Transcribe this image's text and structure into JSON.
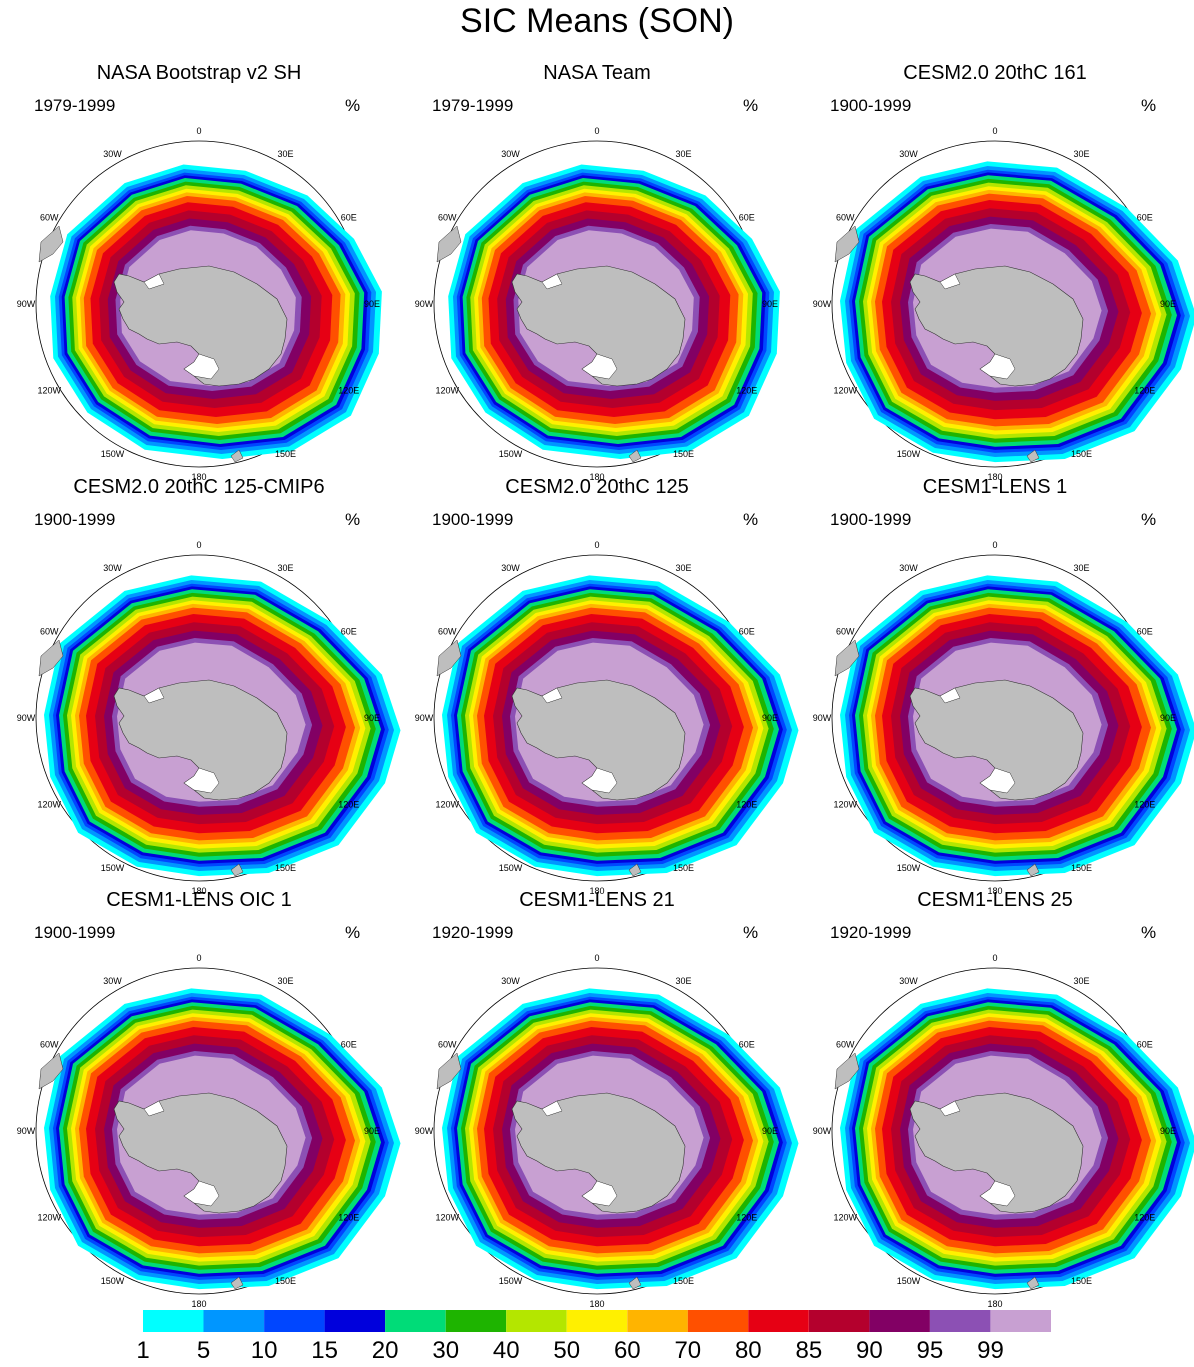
{
  "title": "SIC Means (SON)",
  "units": "%",
  "lon_labels": [
    "0",
    "30E",
    "60E",
    "90E",
    "120E",
    "150E",
    "180",
    "150W",
    "120W",
    "90W",
    "60W",
    "30W"
  ],
  "panels": [
    {
      "title": "NASA Bootstrap v2 SH",
      "period": "1979-1999"
    },
    {
      "title": "NASA Team",
      "period": "1979-1999"
    },
    {
      "title": "CESM2.0 20thC 161",
      "period": "1900-1999"
    },
    {
      "title": "CESM2.0 20thC 125-CMIP6",
      "period": "1900-1999"
    },
    {
      "title": "CESM2.0 20thC 125",
      "period": "1900-1999"
    },
    {
      "title": "CESM1-LENS 1",
      "period": "1900-1999"
    },
    {
      "title": "CESM1-LENS OIC 1",
      "period": "1900-1999"
    },
    {
      "title": "CESM1-LENS 21",
      "period": "1920-1999"
    },
    {
      "title": "CESM1-LENS 25",
      "period": "1920-1999"
    }
  ],
  "colorbar": {
    "labels": [
      "1",
      "5",
      "10",
      "15",
      "20",
      "30",
      "40",
      "50",
      "60",
      "70",
      "80",
      "85",
      "90",
      "95",
      "99"
    ],
    "colors": [
      "#00ffff",
      "#0096ff",
      "#0046ff",
      "#0000dc",
      "#00dc78",
      "#1eb400",
      "#b4e600",
      "#fff000",
      "#ffb400",
      "#ff5000",
      "#e60014",
      "#b4002d",
      "#820064",
      "#8c50b4",
      "#c8a0d2"
    ]
  },
  "chart_data": {
    "type": "heatmap",
    "title": "SIC Means (SON)",
    "units": "%",
    "projection": "south polar stereographic",
    "contour_levels": [
      1,
      5,
      10,
      15,
      20,
      30,
      40,
      50,
      60,
      70,
      80,
      85,
      90,
      95,
      99
    ],
    "panels": [
      {
        "title": "NASA Bootstrap v2 SH",
        "period": "1979-1999"
      },
      {
        "title": "NASA Team",
        "period": "1979-1999"
      },
      {
        "title": "CESM2.0 20thC 161",
        "period": "1900-1999"
      },
      {
        "title": "CESM2.0 20thC 125-CMIP6",
        "period": "1900-1999"
      },
      {
        "title": "CESM2.0 20thC 125",
        "period": "1900-1999"
      },
      {
        "title": "CESM1-LENS 1",
        "period": "1900-1999"
      },
      {
        "title": "CESM1-LENS OIC 1",
        "period": "1900-1999"
      },
      {
        "title": "CESM1-LENS 21",
        "period": "1920-1999"
      },
      {
        "title": "CESM1-LENS 25",
        "period": "1920-1999"
      }
    ]
  }
}
